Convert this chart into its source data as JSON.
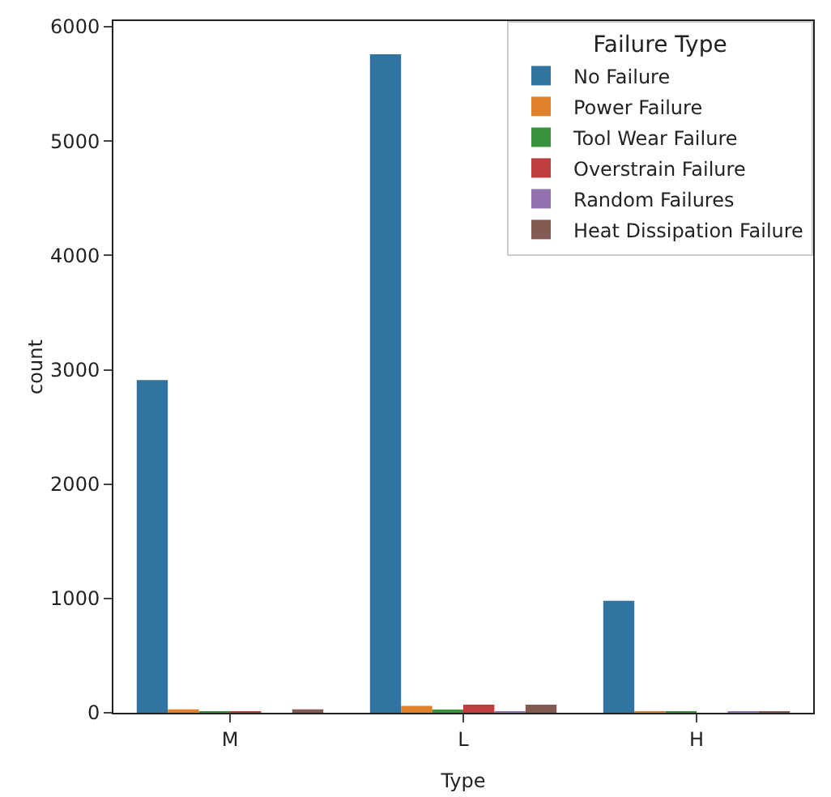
{
  "chart_data": {
    "type": "bar",
    "xlabel": "Type",
    "ylabel": "count",
    "legend_title": "Failure Type",
    "categories": [
      "M",
      "L",
      "H"
    ],
    "series": [
      {
        "name": "No Failure",
        "color": "#3274a1",
        "values": [
          2910,
          5760,
          980
        ]
      },
      {
        "name": "Power Failure",
        "color": "#e1812c",
        "values": [
          30,
          60,
          10
        ]
      },
      {
        "name": "Tool Wear Failure",
        "color": "#3a923a",
        "values": [
          10,
          20,
          10
        ]
      },
      {
        "name": "Overstrain Failure",
        "color": "#c03d3e",
        "values": [
          10,
          70,
          0
        ]
      },
      {
        "name": "Random Failures",
        "color": "#9372b2",
        "values": [
          0,
          10,
          10
        ]
      },
      {
        "name": "Heat Dissipation Failure",
        "color": "#845b53",
        "values": [
          30,
          70,
          10
        ]
      }
    ],
    "ylim": [
      0,
      6050
    ],
    "yticks": [
      0,
      1000,
      2000,
      3000,
      4000,
      5000,
      6000
    ],
    "grid": false,
    "legend": "top right"
  }
}
